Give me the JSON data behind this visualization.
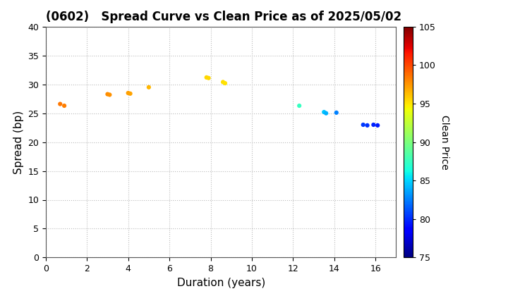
{
  "title": "(0602)   Spread Curve vs Clean Price as of 2025/05/02",
  "xlabel": "Duration (years)",
  "ylabel": "Spread (bp)",
  "colorbar_label": "Clean Price",
  "xlim": [
    0,
    17
  ],
  "ylim": [
    0,
    40
  ],
  "xticks": [
    0,
    2,
    4,
    6,
    8,
    10,
    12,
    14,
    16
  ],
  "yticks": [
    0,
    5,
    10,
    15,
    20,
    25,
    30,
    35,
    40
  ],
  "colorbar_min": 75,
  "colorbar_max": 105,
  "colorbar_ticks": [
    75,
    80,
    85,
    90,
    95,
    100,
    105
  ],
  "points": [
    {
      "duration": 0.7,
      "spread": 26.6,
      "clean_price": 98.5
    },
    {
      "duration": 0.9,
      "spread": 26.3,
      "clean_price": 98.3
    },
    {
      "duration": 3.0,
      "spread": 28.3,
      "clean_price": 97.8
    },
    {
      "duration": 3.1,
      "spread": 28.2,
      "clean_price": 97.7
    },
    {
      "duration": 4.0,
      "spread": 28.5,
      "clean_price": 97.2
    },
    {
      "duration": 4.1,
      "spread": 28.4,
      "clean_price": 97.1
    },
    {
      "duration": 5.0,
      "spread": 29.5,
      "clean_price": 96.5
    },
    {
      "duration": 7.8,
      "spread": 31.2,
      "clean_price": 95.5
    },
    {
      "duration": 7.9,
      "spread": 31.1,
      "clean_price": 95.4
    },
    {
      "duration": 8.6,
      "spread": 30.4,
      "clean_price": 95.2
    },
    {
      "duration": 8.7,
      "spread": 30.2,
      "clean_price": 95.1
    },
    {
      "duration": 12.3,
      "spread": 26.3,
      "clean_price": 87.5
    },
    {
      "duration": 13.5,
      "spread": 25.2,
      "clean_price": 84.5
    },
    {
      "duration": 13.6,
      "spread": 25.0,
      "clean_price": 84.0
    },
    {
      "duration": 14.1,
      "spread": 25.1,
      "clean_price": 82.5
    },
    {
      "duration": 15.4,
      "spread": 23.0,
      "clean_price": 80.5
    },
    {
      "duration": 15.6,
      "spread": 22.9,
      "clean_price": 80.2
    },
    {
      "duration": 15.9,
      "spread": 23.0,
      "clean_price": 79.8
    },
    {
      "duration": 16.1,
      "spread": 22.9,
      "clean_price": 79.5
    }
  ],
  "background_color": "#ffffff",
  "grid_color": "#bbbbbb",
  "title_fontsize": 12,
  "axis_label_fontsize": 11,
  "tick_fontsize": 9,
  "colorbar_label_fontsize": 10,
  "colorbar_tick_fontsize": 9,
  "marker_size": 20
}
